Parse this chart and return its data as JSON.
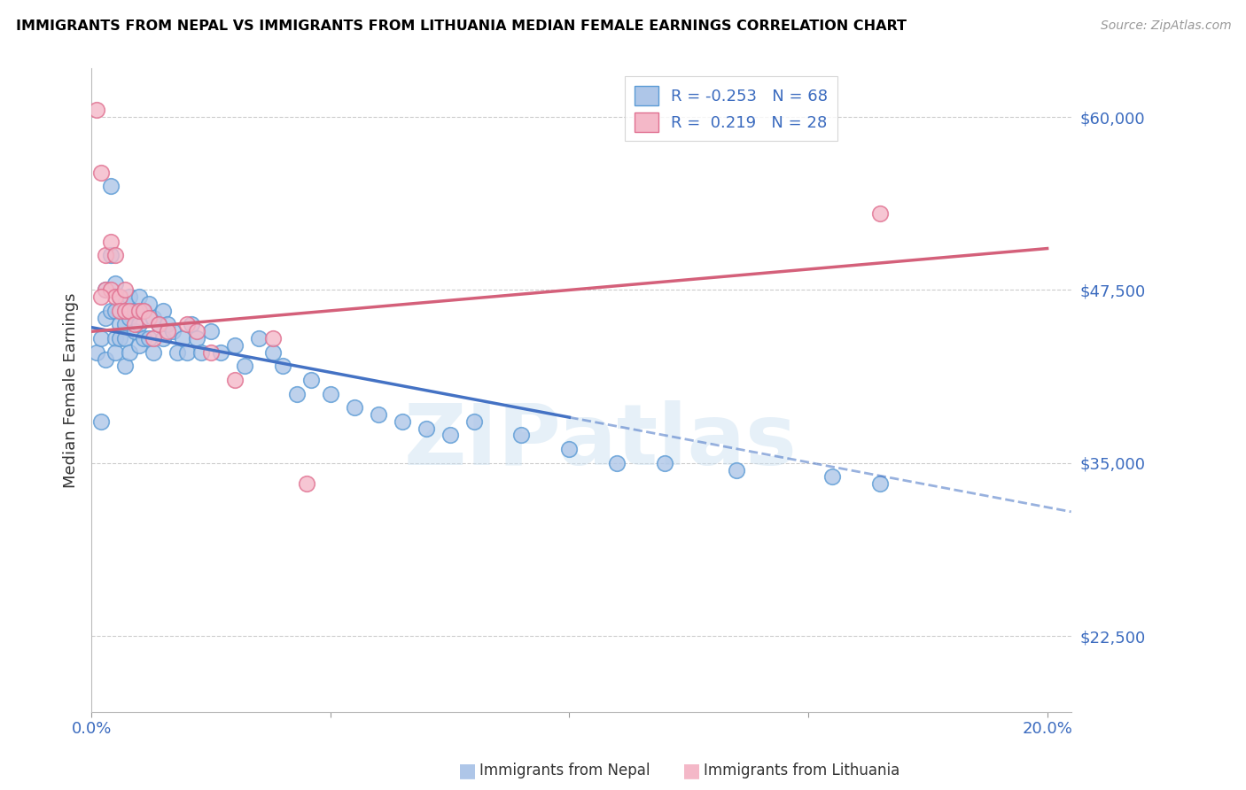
{
  "title": "IMMIGRANTS FROM NEPAL VS IMMIGRANTS FROM LITHUANIA MEDIAN FEMALE EARNINGS CORRELATION CHART",
  "source": "Source: ZipAtlas.com",
  "ylabel": "Median Female Earnings",
  "watermark": "ZIPatlas",
  "nepal_R": -0.253,
  "nepal_N": 68,
  "lithuania_R": 0.219,
  "lithuania_N": 28,
  "nepal_color": "#aec6e8",
  "nepal_edge_color": "#5b9bd5",
  "nepal_line_color": "#4472c4",
  "lithuania_color": "#f4b8c8",
  "lithuania_edge_color": "#e07090",
  "lithuania_line_color": "#d4607a",
  "xlim": [
    0.0,
    0.205
  ],
  "ylim": [
    17000,
    63500
  ],
  "yticks": [
    22500,
    35000,
    47500,
    60000
  ],
  "ytick_labels": [
    "$22,500",
    "$35,000",
    "$47,500",
    "$60,000"
  ],
  "nepal_x": [
    0.001,
    0.002,
    0.002,
    0.003,
    0.003,
    0.003,
    0.004,
    0.004,
    0.004,
    0.005,
    0.005,
    0.005,
    0.005,
    0.006,
    0.006,
    0.006,
    0.007,
    0.007,
    0.007,
    0.007,
    0.008,
    0.008,
    0.008,
    0.009,
    0.009,
    0.01,
    0.01,
    0.01,
    0.011,
    0.011,
    0.012,
    0.012,
    0.013,
    0.013,
    0.014,
    0.015,
    0.015,
    0.016,
    0.017,
    0.018,
    0.019,
    0.02,
    0.021,
    0.022,
    0.023,
    0.025,
    0.027,
    0.03,
    0.032,
    0.035,
    0.038,
    0.04,
    0.043,
    0.046,
    0.05,
    0.055,
    0.06,
    0.065,
    0.07,
    0.075,
    0.08,
    0.09,
    0.1,
    0.11,
    0.12,
    0.135,
    0.155,
    0.165
  ],
  "nepal_y": [
    43000,
    38000,
    44000,
    47500,
    45500,
    42500,
    55000,
    50000,
    46000,
    48000,
    46000,
    44000,
    43000,
    47000,
    45000,
    44000,
    46500,
    45000,
    44000,
    42000,
    47000,
    45500,
    43000,
    46000,
    44500,
    47000,
    45000,
    43500,
    46000,
    44000,
    46500,
    44000,
    45500,
    43000,
    45000,
    46000,
    44000,
    45000,
    44500,
    43000,
    44000,
    43000,
    45000,
    44000,
    43000,
    44500,
    43000,
    43500,
    42000,
    44000,
    43000,
    42000,
    40000,
    41000,
    40000,
    39000,
    38500,
    38000,
    37500,
    37000,
    38000,
    37000,
    36000,
    35000,
    35000,
    34500,
    34000,
    33500
  ],
  "lithuania_x": [
    0.001,
    0.002,
    0.003,
    0.003,
    0.004,
    0.004,
    0.005,
    0.005,
    0.006,
    0.006,
    0.007,
    0.007,
    0.008,
    0.009,
    0.01,
    0.011,
    0.012,
    0.013,
    0.014,
    0.016,
    0.02,
    0.022,
    0.025,
    0.03,
    0.038,
    0.045,
    0.165,
    0.002
  ],
  "lithuania_y": [
    60500,
    56000,
    50000,
    47500,
    51000,
    47500,
    50000,
    47000,
    47000,
    46000,
    47500,
    46000,
    46000,
    45000,
    46000,
    46000,
    45500,
    44000,
    45000,
    44500,
    45000,
    44500,
    43000,
    41000,
    44000,
    33500,
    53000,
    47000
  ],
  "nepal_line_x0": 0.0,
  "nepal_line_x_solid_end": 0.1,
  "nepal_line_x_dash_end": 0.205,
  "nepal_line_y0": 44800,
  "nepal_line_slope": -65000,
  "lithuania_line_x0": 0.0,
  "lithuania_line_x_end": 0.2,
  "lithuania_line_y0": 44500,
  "lithuania_line_slope": 30000
}
